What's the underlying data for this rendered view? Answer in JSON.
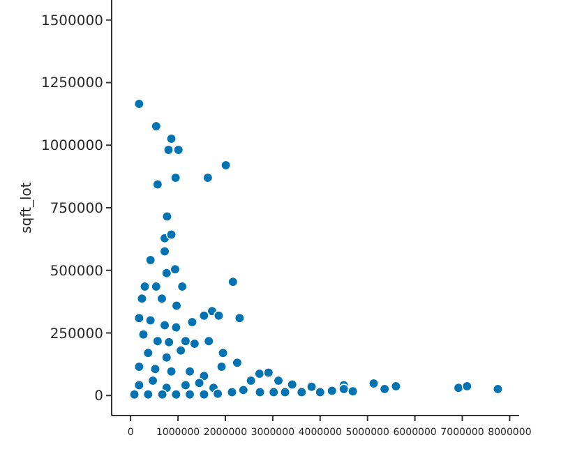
{
  "chart_data": {
    "type": "scatter",
    "ylabel": "sqft_lot",
    "marker": "circle",
    "grid": false,
    "xlim": [
      -400000,
      8200000
    ],
    "ylim": [
      -80000,
      1580000
    ],
    "xticks": [
      0,
      1000000,
      2000000,
      3000000,
      4000000,
      5000000,
      6000000,
      7000000,
      8000000
    ],
    "yticks": [
      0,
      250000,
      500000,
      750000,
      1000000,
      1250000,
      1500000
    ],
    "series": [
      {
        "color": "#0173b2",
        "x": [
          180000,
          540000,
          860000,
          800000,
          1010000,
          570000,
          950000,
          1630000,
          2010000,
          770000,
          720000,
          860000,
          720000,
          420000,
          760000,
          940000,
          2160000,
          2300000,
          1720000,
          1860000,
          1550000,
          1300000,
          1950000,
          2250000,
          1920000,
          300000,
          540000,
          1090000,
          240000,
          660000,
          970000,
          180000,
          420000,
          720000,
          960000,
          270000,
          570000,
          810000,
          1160000,
          370000,
          760000,
          1060000,
          1350000,
          1650000,
          180000,
          520000,
          860000,
          1250000,
          1550000,
          180000,
          470000,
          760000,
          1160000,
          1450000,
          1750000,
          80000,
          370000,
          670000,
          960000,
          1250000,
          1550000,
          1840000,
          2140000,
          2540000,
          2720000,
          2910000,
          3120000,
          3410000,
          2380000,
          2730000,
          3020000,
          3260000,
          3610000,
          3820000,
          4000000,
          4250000,
          4500000,
          4500000,
          4690000,
          5130000,
          5360000,
          5600000,
          6920000,
          7100000,
          7750000
        ],
        "values": [
          1165000,
          1076000,
          1026000,
          981000,
          981000,
          843000,
          870000,
          870000,
          920000,
          715000,
          628000,
          643000,
          576000,
          541000,
          489000,
          504000,
          454000,
          309000,
          337000,
          319000,
          319000,
          293000,
          170000,
          131000,
          115000,
          435000,
          435000,
          435000,
          387000,
          387000,
          359000,
          309000,
          300000,
          281000,
          272000,
          244000,
          217000,
          213000,
          217000,
          170000,
          152000,
          180000,
          207000,
          217000,
          115000,
          106000,
          96000,
          96000,
          78000,
          41000,
          59000,
          31000,
          41000,
          50000,
          31000,
          4000,
          4000,
          4000,
          4000,
          4000,
          4000,
          7000,
          13000,
          59000,
          87000,
          91000,
          59000,
          44000,
          22000,
          13000,
          13000,
          13000,
          13000,
          35000,
          13000,
          19000,
          41000,
          26000,
          17000,
          48000,
          26000,
          37000,
          31000,
          37000,
          26000
        ]
      }
    ]
  }
}
